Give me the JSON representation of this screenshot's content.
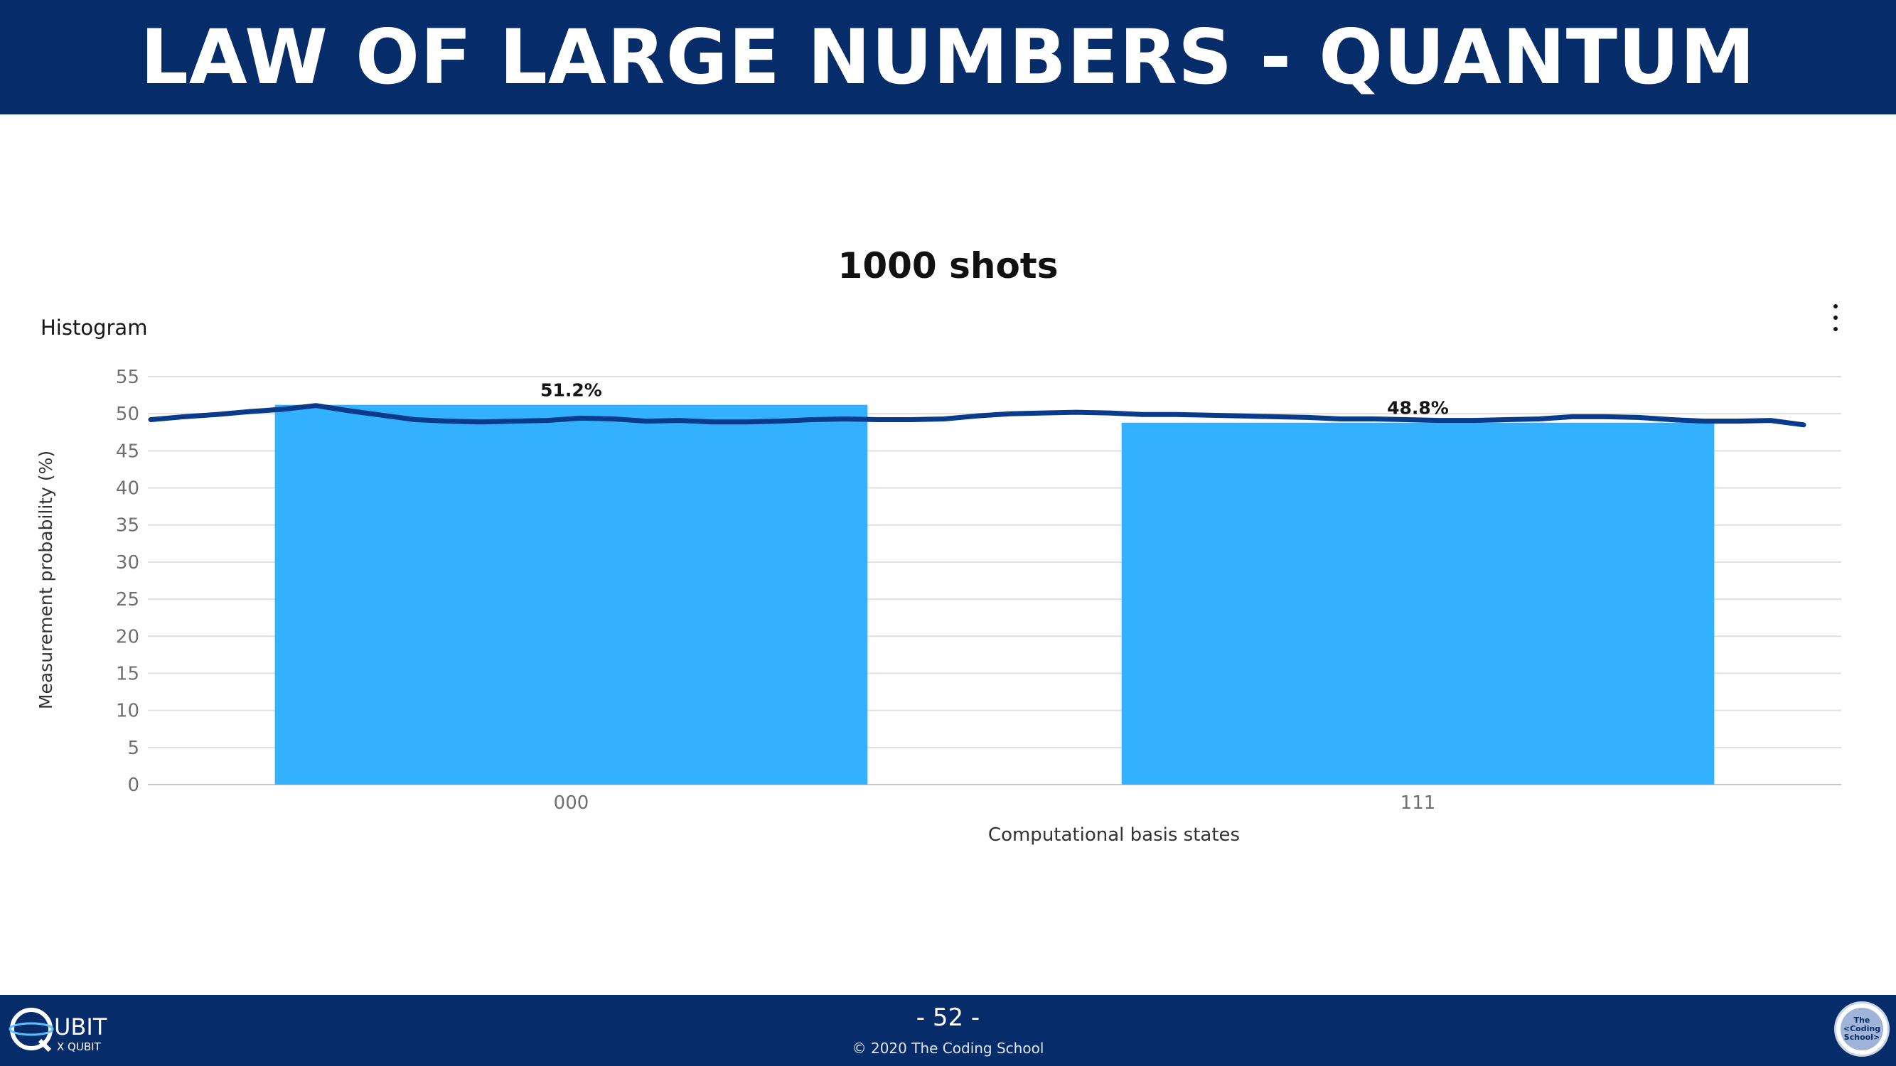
{
  "header": {
    "title": "LAW OF LARGE NUMBERS - QUANTUM"
  },
  "panel": {
    "label": "Histogram",
    "menu_icon": "kebab-menu-icon"
  },
  "footer": {
    "page_number": "- 52 -",
    "copyright": "© 2020 The Coding School",
    "left_logo": {
      "text_main": "UBIT",
      "text_sub": "X QUBIT"
    },
    "right_logo": {
      "lines": [
        "The",
        "<Coding",
        "School>"
      ]
    }
  },
  "colors": {
    "header_bg": "#062c69",
    "bar": "#33b1ff",
    "annotation_line": "#0a3a8a",
    "grid": "#e0e0e0"
  },
  "chart_data": {
    "type": "bar",
    "title": "1000 shots",
    "xlabel": "Computational basis states",
    "ylabel": "Measurement probability (%)",
    "categories": [
      "000",
      "111"
    ],
    "values": [
      51.2,
      48.8
    ],
    "value_labels": [
      "51.2%",
      "48.8%"
    ],
    "ylim": [
      0,
      55
    ],
    "yticks": [
      0,
      5,
      10,
      15,
      20,
      25,
      30,
      35,
      40,
      45,
      50,
      55
    ],
    "grid": true,
    "annotation": {
      "description": "hand-drawn line near 50%",
      "points": [
        [
          0.0,
          49.2
        ],
        [
          0.02,
          49.6
        ],
        [
          0.04,
          49.9
        ],
        [
          0.06,
          50.3
        ],
        [
          0.08,
          50.6
        ],
        [
          0.1,
          51.1
        ],
        [
          0.12,
          50.4
        ],
        [
          0.14,
          49.8
        ],
        [
          0.16,
          49.2
        ],
        [
          0.18,
          49.0
        ],
        [
          0.2,
          48.9
        ],
        [
          0.22,
          49.0
        ],
        [
          0.24,
          49.1
        ],
        [
          0.26,
          49.4
        ],
        [
          0.28,
          49.3
        ],
        [
          0.3,
          49.0
        ],
        [
          0.32,
          49.1
        ],
        [
          0.34,
          48.9
        ],
        [
          0.36,
          48.9
        ],
        [
          0.38,
          49.0
        ],
        [
          0.4,
          49.2
        ],
        [
          0.42,
          49.3
        ],
        [
          0.44,
          49.2
        ],
        [
          0.46,
          49.2
        ],
        [
          0.48,
          49.3
        ],
        [
          0.5,
          49.7
        ],
        [
          0.52,
          50.0
        ],
        [
          0.54,
          50.1
        ],
        [
          0.56,
          50.2
        ],
        [
          0.58,
          50.1
        ],
        [
          0.6,
          49.9
        ],
        [
          0.62,
          49.9
        ],
        [
          0.64,
          49.8
        ],
        [
          0.66,
          49.7
        ],
        [
          0.68,
          49.6
        ],
        [
          0.7,
          49.5
        ],
        [
          0.72,
          49.3
        ],
        [
          0.74,
          49.3
        ],
        [
          0.76,
          49.2
        ],
        [
          0.78,
          49.1
        ],
        [
          0.8,
          49.1
        ],
        [
          0.82,
          49.2
        ],
        [
          0.84,
          49.3
        ],
        [
          0.86,
          49.6
        ],
        [
          0.88,
          49.6
        ],
        [
          0.9,
          49.5
        ],
        [
          0.92,
          49.2
        ],
        [
          0.94,
          49.0
        ],
        [
          0.96,
          49.0
        ],
        [
          0.98,
          49.1
        ],
        [
          1.0,
          48.5
        ]
      ]
    }
  }
}
